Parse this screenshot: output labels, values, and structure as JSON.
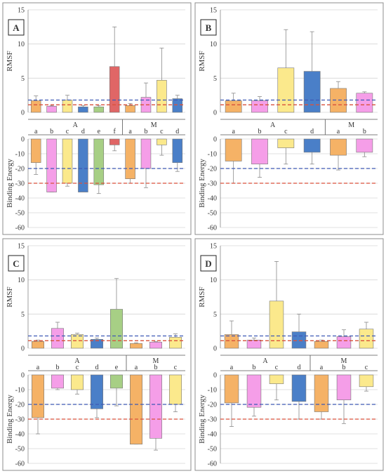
{
  "colors": {
    "orange": "#f5b266",
    "pink": "#f59ee8",
    "yellow": "#fbe98c",
    "blue": "#4a7fc8",
    "green": "#a7cf85",
    "red": "#e06666",
    "ref_blue": "#3f59b5",
    "ref_red": "#d9513c"
  },
  "chart_data": [
    {
      "type": "bar",
      "panel": "A",
      "groups": [
        {
          "name": "A",
          "categories": [
            "a",
            "b",
            "c",
            "d",
            "e",
            "f"
          ]
        },
        {
          "name": "M",
          "categories": [
            "a",
            "b",
            "c",
            "d"
          ]
        }
      ],
      "bar_colors": [
        "orange",
        "pink",
        "yellow",
        "blue",
        "green",
        "red",
        "orange",
        "pink",
        "yellow",
        "blue"
      ],
      "rmsf": {
        "ylabel": "RMSF",
        "ylim": [
          0,
          15
        ],
        "ticks": [
          0,
          5,
          10,
          15
        ],
        "values": [
          1.7,
          0.9,
          1.8,
          0.8,
          0.8,
          6.7,
          1.0,
          2.2,
          4.7,
          2.0
        ],
        "errors": [
          0.7,
          0.1,
          0.7,
          0.2,
          0.2,
          5.8,
          0.3,
          2.1,
          4.7,
          0.5
        ],
        "ref_blue": 1.8,
        "ref_red": 1.1
      },
      "energy": {
        "ylabel": "Binding Energy",
        "ylim": [
          -60,
          0
        ],
        "ticks": [
          0,
          -10,
          -20,
          -30,
          -40,
          -50,
          -60
        ],
        "values": [
          -16,
          -36,
          -30,
          -36,
          -31,
          -4,
          -27,
          -20,
          -4,
          -16
        ],
        "errors": [
          8,
          0,
          2,
          0,
          6,
          4,
          3,
          13,
          7,
          6
        ],
        "ref_blue": -20,
        "ref_red": -30
      }
    },
    {
      "type": "bar",
      "panel": "B",
      "groups": [
        {
          "name": "A",
          "categories": [
            "a",
            "b",
            "c",
            "d"
          ]
        },
        {
          "name": "M",
          "categories": [
            "a",
            "b"
          ]
        }
      ],
      "bar_colors": [
        "orange",
        "pink",
        "yellow",
        "blue",
        "orange",
        "pink"
      ],
      "rmsf": {
        "ylabel": "RMSF",
        "ylim": [
          0,
          15
        ],
        "ticks": [
          0,
          5,
          10,
          15
        ],
        "values": [
          1.7,
          1.7,
          6.5,
          6.0,
          3.5,
          2.8
        ],
        "errors": [
          1.1,
          0.6,
          5.6,
          5.8,
          1.0,
          0.2
        ],
        "ref_blue": 1.8,
        "ref_red": 1.1
      },
      "energy": {
        "ylabel": "Binding Energy",
        "ylim": [
          -60,
          0
        ],
        "ticks": [
          0,
          -10,
          -20,
          -30,
          -40,
          -50,
          -60
        ],
        "values": [
          -15,
          -17,
          -6,
          -9,
          -11,
          -9
        ],
        "errors": [
          15,
          9,
          11,
          8,
          10,
          3
        ],
        "ref_blue": -20,
        "ref_red": -30
      }
    },
    {
      "type": "bar",
      "panel": "C",
      "groups": [
        {
          "name": "A",
          "categories": [
            "a",
            "b",
            "c",
            "d",
            "e"
          ]
        },
        {
          "name": "M",
          "categories": [
            "a",
            "b",
            "c"
          ]
        }
      ],
      "bar_colors": [
        "orange",
        "pink",
        "yellow",
        "blue",
        "green",
        "orange",
        "pink",
        "yellow"
      ],
      "rmsf": {
        "ylabel": "RMSF",
        "ylim": [
          0,
          15
        ],
        "ticks": [
          0,
          5,
          10,
          15
        ],
        "values": [
          1.0,
          2.9,
          2.0,
          1.3,
          5.7,
          0.7,
          0.9,
          1.6
        ],
        "errors": [
          0.2,
          0.9,
          0.2,
          0.2,
          4.5,
          0.1,
          0.1,
          0.5
        ],
        "ref_blue": 1.8,
        "ref_red": 1.1
      },
      "energy": {
        "ylabel": "Binding Energy",
        "ylim": [
          -60,
          0
        ],
        "ticks": [
          0,
          -10,
          -20,
          -30,
          -40,
          -50,
          -60
        ],
        "values": [
          -29,
          -9,
          -10,
          -23,
          -9,
          -47,
          -43,
          -20
        ],
        "errors": [
          11,
          1,
          3,
          6,
          12,
          0,
          8,
          5
        ],
        "ref_blue": -20,
        "ref_red": -30
      }
    },
    {
      "type": "bar",
      "panel": "D",
      "groups": [
        {
          "name": "A",
          "categories": [
            "a",
            "b",
            "c",
            "d"
          ]
        },
        {
          "name": "M",
          "categories": [
            "a",
            "b",
            "c"
          ]
        }
      ],
      "bar_colors": [
        "orange",
        "pink",
        "yellow",
        "blue",
        "orange",
        "pink",
        "yellow"
      ],
      "rmsf": {
        "ylabel": "RMSF",
        "ylim": [
          0,
          15
        ],
        "ticks": [
          0,
          5,
          10,
          15
        ],
        "values": [
          2.0,
          1.2,
          6.9,
          2.4,
          1.0,
          1.7,
          2.8
        ],
        "errors": [
          2.0,
          0.3,
          5.8,
          2.6,
          0.2,
          1.0,
          1.0
        ],
        "ref_blue": 1.8,
        "ref_red": 1.1
      },
      "energy": {
        "ylabel": "Binding Energy",
        "ylim": [
          -60,
          0
        ],
        "ticks": [
          0,
          -10,
          -20,
          -30,
          -40,
          -50,
          -60
        ],
        "values": [
          -19,
          -22,
          -6,
          -18,
          -25,
          -17,
          -8
        ],
        "errors": [
          16,
          6,
          11,
          12,
          5,
          16,
          3
        ],
        "ref_blue": -20,
        "ref_red": -30
      }
    }
  ]
}
